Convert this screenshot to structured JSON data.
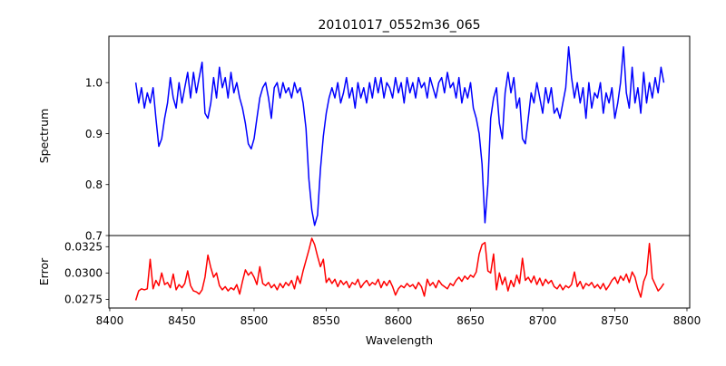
{
  "chart_data": [
    {
      "type": "line",
      "title": "20101017_0552m36_065",
      "xlabel": "",
      "ylabel": "Spectrum",
      "xlim": [
        8399.4,
        8801.9
      ],
      "ylim": [
        0.7,
        1.091
      ],
      "yticks": [
        0.7,
        0.8,
        0.9,
        1.0
      ],
      "ytick_labels": [
        "0.7",
        "0.8",
        "0.9",
        "1.0"
      ],
      "grid": false,
      "color": "#0000ff",
      "x_start": 8418,
      "x_step": 2,
      "values": [
        1.0,
        0.96,
        0.99,
        0.95,
        0.98,
        0.96,
        0.99,
        0.93,
        0.875,
        0.89,
        0.93,
        0.96,
        1.01,
        0.97,
        0.95,
        1.0,
        0.96,
        0.99,
        1.02,
        0.97,
        1.02,
        0.98,
        1.01,
        1.04,
        0.94,
        0.93,
        0.96,
        1.01,
        0.97,
        1.03,
        0.99,
        1.01,
        0.97,
        1.02,
        0.98,
        1.0,
        0.97,
        0.95,
        0.92,
        0.88,
        0.87,
        0.89,
        0.93,
        0.97,
        0.99,
        1.0,
        0.97,
        0.93,
        0.99,
        1.0,
        0.97,
        1.0,
        0.98,
        0.99,
        0.97,
        1.0,
        0.98,
        0.99,
        0.96,
        0.91,
        0.81,
        0.75,
        0.72,
        0.74,
        0.83,
        0.895,
        0.94,
        0.97,
        0.99,
        0.97,
        1.0,
        0.96,
        0.98,
        1.01,
        0.97,
        0.99,
        0.95,
        1.0,
        0.97,
        0.99,
        0.96,
        1.0,
        0.97,
        1.01,
        0.98,
        1.01,
        0.97,
        1.0,
        0.99,
        0.97,
        1.01,
        0.98,
        1.0,
        0.96,
        1.01,
        0.98,
        1.0,
        0.97,
        1.01,
        0.99,
        1.0,
        0.97,
        1.01,
        0.99,
        0.97,
        1.0,
        1.01,
        0.98,
        1.02,
        0.99,
        1.0,
        0.97,
        1.01,
        0.96,
        0.99,
        0.97,
        1.0,
        0.95,
        0.93,
        0.9,
        0.84,
        0.725,
        0.8,
        0.93,
        0.97,
        0.99,
        0.92,
        0.89,
        0.98,
        1.02,
        0.98,
        1.01,
        0.95,
        0.97,
        0.89,
        0.88,
        0.93,
        0.98,
        0.96,
        1.0,
        0.97,
        0.94,
        0.99,
        0.96,
        0.99,
        0.94,
        0.95,
        0.93,
        0.96,
        0.99,
        1.07,
        1.01,
        0.97,
        1.0,
        0.96,
        0.99,
        0.93,
        1.0,
        0.95,
        0.98,
        0.97,
        1.0,
        0.94,
        0.98,
        0.96,
        0.99,
        0.93,
        0.96,
        1.0,
        1.07,
        0.98,
        0.95,
        1.03,
        0.96,
        0.99,
        0.94,
        1.02,
        0.96,
        1.0,
        0.97,
        1.01,
        0.98,
        1.03,
        1.0
      ]
    },
    {
      "type": "line",
      "title": "",
      "xlabel": "Wavelength",
      "ylabel": "Error",
      "xlim": [
        8399.4,
        8801.9
      ],
      "ylim": [
        0.02667,
        0.03356
      ],
      "xticks": [
        8400,
        8450,
        8500,
        8550,
        8600,
        8650,
        8700,
        8750,
        8800
      ],
      "xtick_labels": [
        "8400",
        "8450",
        "8500",
        "8550",
        "8600",
        "8650",
        "8700",
        "8750",
        "8800"
      ],
      "yticks": [
        0.0275,
        0.03,
        0.0325
      ],
      "ytick_labels": [
        "0.0275",
        "0.0300",
        "0.0325"
      ],
      "grid": false,
      "color": "#ff0000",
      "x_start": 8418,
      "x_step": 2,
      "values": [
        0.0274,
        0.0283,
        0.0285,
        0.0284,
        0.0285,
        0.0313,
        0.0285,
        0.0293,
        0.0288,
        0.03,
        0.0289,
        0.0291,
        0.0286,
        0.0299,
        0.0284,
        0.0289,
        0.0286,
        0.029,
        0.0302,
        0.0288,
        0.0283,
        0.0282,
        0.028,
        0.0284,
        0.0296,
        0.0317,
        0.0305,
        0.0296,
        0.03,
        0.0288,
        0.0284,
        0.0287,
        0.0283,
        0.0286,
        0.0284,
        0.0289,
        0.028,
        0.0292,
        0.0303,
        0.0298,
        0.0301,
        0.0296,
        0.0289,
        0.0306,
        0.029,
        0.0288,
        0.0291,
        0.0286,
        0.0289,
        0.0284,
        0.029,
        0.0286,
        0.0291,
        0.0288,
        0.0293,
        0.0285,
        0.0297,
        0.029,
        0.0302,
        0.0312,
        0.0322,
        0.0333,
        0.0327,
        0.0316,
        0.0306,
        0.0313,
        0.0291,
        0.0295,
        0.029,
        0.0294,
        0.0287,
        0.0293,
        0.0289,
        0.0292,
        0.0286,
        0.0291,
        0.0289,
        0.0294,
        0.0286,
        0.029,
        0.0293,
        0.0288,
        0.0291,
        0.0289,
        0.0294,
        0.0286,
        0.0292,
        0.0288,
        0.0293,
        0.0287,
        0.0279,
        0.0285,
        0.0288,
        0.0286,
        0.029,
        0.0287,
        0.0289,
        0.0285,
        0.0291,
        0.0287,
        0.0278,
        0.0294,
        0.0288,
        0.0291,
        0.0286,
        0.0293,
        0.0289,
        0.0287,
        0.0285,
        0.029,
        0.0288,
        0.0293,
        0.0296,
        0.0292,
        0.0297,
        0.0294,
        0.0298,
        0.0296,
        0.0301,
        0.0318,
        0.0327,
        0.0329,
        0.0302,
        0.03,
        0.0318,
        0.0284,
        0.03,
        0.0289,
        0.0296,
        0.0283,
        0.0293,
        0.0287,
        0.0298,
        0.029,
        0.0314,
        0.0293,
        0.0296,
        0.0291,
        0.0297,
        0.0289,
        0.0295,
        0.0288,
        0.0294,
        0.029,
        0.0293,
        0.0287,
        0.0285,
        0.0289,
        0.0284,
        0.0288,
        0.0286,
        0.0289,
        0.0301,
        0.0287,
        0.0292,
        0.0285,
        0.029,
        0.0288,
        0.0291,
        0.0286,
        0.0289,
        0.0285,
        0.029,
        0.0284,
        0.0288,
        0.0293,
        0.0296,
        0.029,
        0.0297,
        0.0293,
        0.0299,
        0.0291,
        0.0301,
        0.0296,
        0.0285,
        0.0277,
        0.0292,
        0.0299,
        0.0328,
        0.0295,
        0.0289,
        0.0283,
        0.0286,
        0.029
      ]
    }
  ]
}
